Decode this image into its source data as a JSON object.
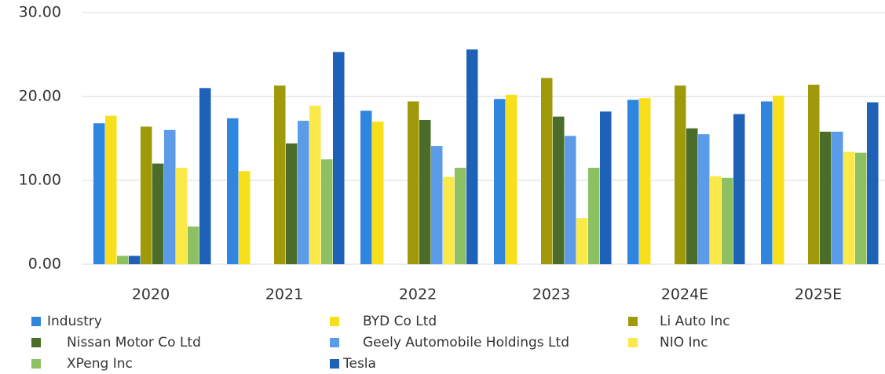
{
  "chart_data": {
    "type": "bar",
    "categories": [
      "2020",
      "2021",
      "2022",
      "2023",
      "2024E",
      "2025E"
    ],
    "series": [
      {
        "name": "Industry",
        "color": "#2f86de",
        "values": [
          16.8,
          17.4,
          18.3,
          19.7,
          19.6,
          19.4
        ]
      },
      {
        "name": "BYD Co Ltd",
        "color": "#f7e01b",
        "values": [
          17.7,
          11.1,
          17.0,
          20.2,
          19.8,
          20.1
        ]
      },
      {
        "color": "#8cc063",
        "values": [
          1.0,
          null,
          null,
          null,
          null,
          null
        ]
      },
      {
        "color": "#1e62b8",
        "values": [
          1.0,
          null,
          null,
          null,
          null,
          null
        ]
      },
      {
        "name": "Li Auto Inc",
        "color": "#a09a0a",
        "values": [
          16.4,
          21.3,
          19.4,
          22.2,
          21.3,
          21.4
        ]
      },
      {
        "name": "Nissan Motor Co Ltd",
        "color": "#4a6e2a",
        "values": [
          12.0,
          14.4,
          17.2,
          17.6,
          16.2,
          15.8
        ]
      },
      {
        "name": "Geely Automobile Holdings Ltd",
        "color": "#5b9be8",
        "values": [
          16.0,
          17.1,
          14.1,
          15.3,
          15.5,
          15.8
        ]
      },
      {
        "name": "NIO Inc",
        "color": "#fbe94a",
        "values": [
          11.5,
          18.9,
          10.4,
          5.5,
          10.5,
          13.4
        ]
      },
      {
        "name": "XPeng Inc",
        "color": "#8cc063",
        "values": [
          4.5,
          12.5,
          11.5,
          11.5,
          10.3,
          13.3
        ]
      },
      {
        "name": "Tesla",
        "color": "#1e62b8",
        "values": [
          21.0,
          25.3,
          25.6,
          18.2,
          17.9,
          19.3
        ]
      }
    ],
    "ylim": [
      0,
      30
    ],
    "yticks": [
      {
        "value": 0,
        "label": "0.00"
      },
      {
        "value": 10,
        "label": "10.00"
      },
      {
        "value": 20,
        "label": "20.00"
      },
      {
        "value": 30,
        "label": "30.00"
      }
    ],
    "grid": true
  }
}
